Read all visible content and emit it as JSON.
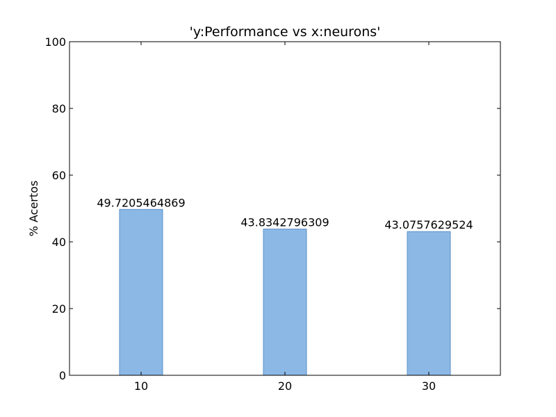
{
  "chart_data": {
    "type": "bar",
    "title": "'y:Performance vs x:neurons'",
    "xlabel": "",
    "ylabel": "% Acertos",
    "categories": [
      "10",
      "20",
      "30"
    ],
    "values": [
      49.7205464869,
      43.8342796309,
      43.0757629524
    ],
    "data_labels": [
      "49.7205464869",
      "43.8342796309",
      "43.0757629524"
    ],
    "ylim": [
      0,
      100
    ],
    "yticks": [
      "0",
      "20",
      "40",
      "60",
      "80",
      "100"
    ],
    "ytick_values": [
      0,
      20,
      40,
      60,
      80,
      100
    ],
    "grid": false,
    "bar_color": "#8cb8e5",
    "bar_edge_color": "#5b8fc7"
  }
}
